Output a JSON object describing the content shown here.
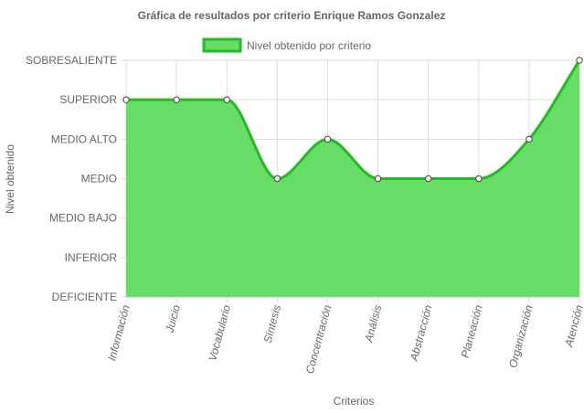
{
  "chart_data": {
    "type": "area",
    "title": "Gráfica de resultados por criterio Enrique Ramos Gonzalez",
    "xlabel": "Criterios",
    "ylabel": "Nivel obtenido",
    "categories": [
      "Información",
      "Juicio",
      "Vocabulario",
      "Síntesis",
      "Concentración",
      "Análisis",
      "Abstracción",
      "Planeación",
      "Organización",
      "Atención"
    ],
    "y_levels": [
      "DEFICIENTE",
      "INFERIOR",
      "MEDIO BAJO",
      "MEDIO",
      "MEDIO ALTO",
      "SUPERIOR",
      "SOBRESALIENTE"
    ],
    "series": [
      {
        "name": "Nivel obtenido por criterio",
        "values": [
          "SUPERIOR",
          "SUPERIOR",
          "SUPERIOR",
          "MEDIO",
          "MEDIO ALTO",
          "MEDIO",
          "MEDIO",
          "MEDIO",
          "MEDIO ALTO",
          "SOBRESALIENTE"
        ],
        "fill_color": "#66dd66",
        "line_color": "#22bb22"
      }
    ],
    "grid": true,
    "legend_position": "top"
  }
}
